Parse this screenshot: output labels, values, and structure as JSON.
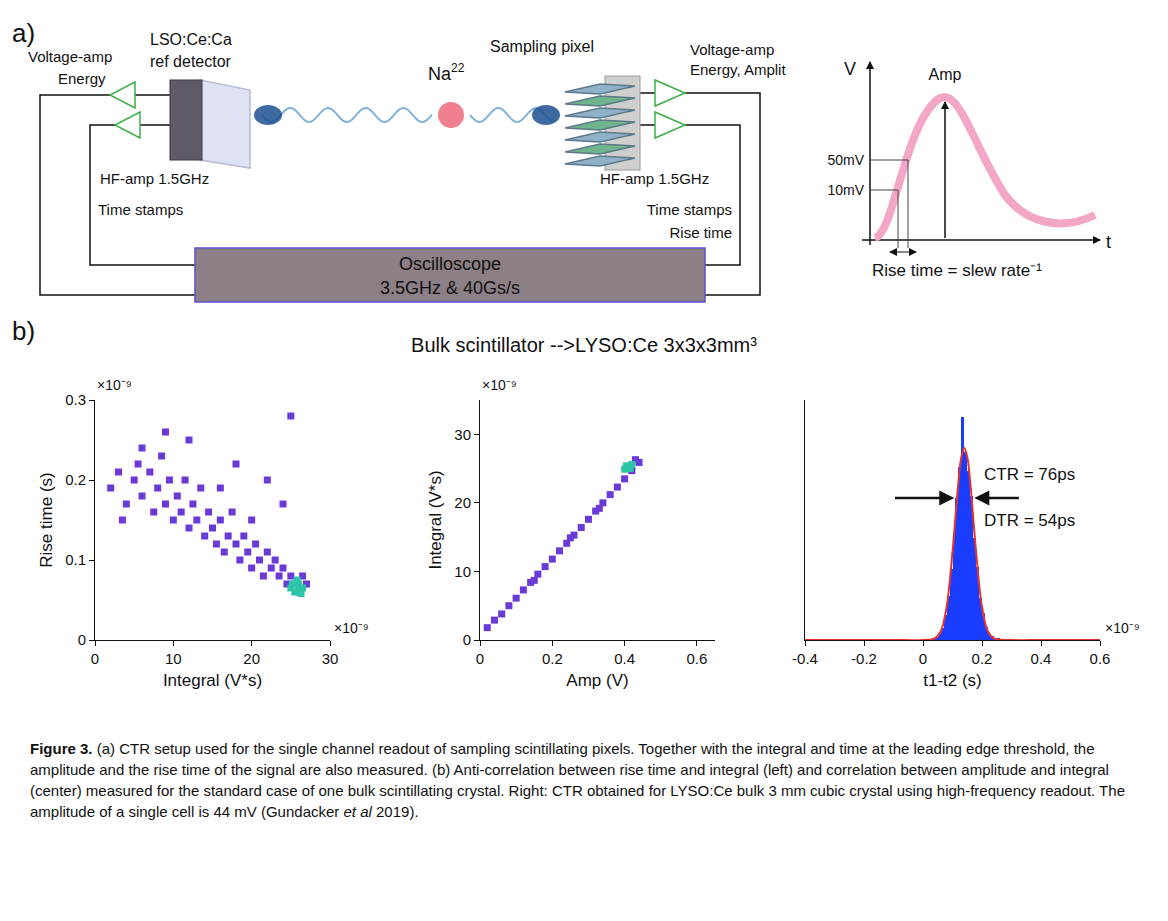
{
  "panel_a": {
    "label": "a)",
    "ref_detector": [
      "LSO:Ce:Ca",
      "ref detector"
    ],
    "sampling_pixel": "Sampling pixel",
    "source": {
      "text": "Na",
      "sup": "22"
    },
    "left_voltage_amp": [
      "Voltage-amp",
      "Energy"
    ],
    "left_hf_amp": "HF-amp 1.5GHz",
    "left_output": "Time stamps",
    "right_voltage_amp": [
      "Voltage-amp",
      "Energy, Amplit"
    ],
    "right_hf_amp": "HF-amp 1.5GHz",
    "right_output": [
      "Time stamps",
      "Rise time"
    ],
    "oscilloscope": [
      "Oscilloscope",
      "3.5GHz & 40Gs/s"
    ],
    "inset": {
      "y_label": "V",
      "x_label": "t",
      "amp": "Amp",
      "thresholds": [
        "50mV",
        "10mV"
      ],
      "rise_time": "Rise time = slew rate⁻¹"
    }
  },
  "panel_b": {
    "label": "b)",
    "title": "Bulk scintillator -->LYSO:Ce 3x3x3mm³"
  },
  "chart_data": [
    {
      "type": "scatter",
      "x_label": "Integral (V*s)",
      "y_label": "Rise time (s)",
      "xlim": [
        0,
        30
      ],
      "xticks": [
        0,
        10,
        20,
        30
      ],
      "ylim": [
        0,
        0.3
      ],
      "yticks": [
        0,
        0.1,
        0.2,
        0.3
      ],
      "grid": false,
      "annotations": [
        {
          "text": "×10⁻⁹",
          "axis": "y"
        },
        {
          "text": "×10⁻⁹",
          "axis": "x"
        }
      ],
      "series": [
        {
          "color": "#6a3ad8",
          "marker": "square",
          "x": [
            2,
            3,
            4,
            5,
            5.5,
            6,
            7,
            7.5,
            8,
            8.5,
            9,
            9.5,
            10,
            10.5,
            11,
            11.5,
            12,
            12.5,
            13,
            13.5,
            14,
            14.5,
            15,
            15.5,
            16,
            16.5,
            17,
            17.5,
            18,
            18.5,
            19,
            19.5,
            20,
            20.5,
            21,
            21.5,
            22,
            22.5,
            23,
            23.5,
            24,
            24.5,
            25,
            25.5,
            26,
            26.5,
            27,
            12,
            18,
            22,
            24,
            25,
            9,
            16,
            20,
            6,
            3.5
          ],
          "values": [
            0.19,
            0.21,
            0.17,
            0.2,
            0.22,
            0.18,
            0.21,
            0.16,
            0.19,
            0.23,
            0.17,
            0.2,
            0.15,
            0.18,
            0.16,
            0.2,
            0.14,
            0.17,
            0.15,
            0.19,
            0.13,
            0.16,
            0.14,
            0.12,
            0.15,
            0.11,
            0.13,
            0.16,
            0.12,
            0.1,
            0.13,
            0.11,
            0.09,
            0.12,
            0.1,
            0.08,
            0.11,
            0.09,
            0.1,
            0.08,
            0.09,
            0.07,
            0.08,
            0.07,
            0.06,
            0.08,
            0.07,
            0.25,
            0.22,
            0.2,
            0.17,
            0.28,
            0.26,
            0.19,
            0.15,
            0.24,
            0.15
          ]
        },
        {
          "color": "#2ec4a8",
          "marker": "square",
          "x": [
            25,
            25.5,
            26,
            26.3,
            25.8,
            26.5,
            25.2,
            26.1
          ],
          "values": [
            0.065,
            0.06,
            0.07,
            0.058,
            0.075,
            0.065,
            0.07,
            0.062
          ]
        }
      ]
    },
    {
      "type": "scatter",
      "x_label": "Amp (V)",
      "y_label": "Integral (V*s)",
      "xlim": [
        0,
        0.65
      ],
      "xticks": [
        0,
        0.2,
        0.4,
        0.6
      ],
      "ylim": [
        0,
        35
      ],
      "yticks": [
        0,
        10,
        20,
        30
      ],
      "grid": false,
      "annotations": [
        {
          "text": "×10⁻⁹",
          "axis": "y"
        }
      ],
      "series": [
        {
          "color": "#6a3ad8",
          "marker": "square",
          "x": [
            0.02,
            0.04,
            0.06,
            0.08,
            0.1,
            0.12,
            0.14,
            0.16,
            0.18,
            0.2,
            0.22,
            0.24,
            0.26,
            0.28,
            0.3,
            0.32,
            0.34,
            0.36,
            0.38,
            0.4,
            0.42,
            0.44,
            0.15,
            0.25,
            0.33,
            0.43
          ],
          "values": [
            1.8,
            2.9,
            3.8,
            5.0,
            6.1,
            7.3,
            8.4,
            9.6,
            10.7,
            11.8,
            13.0,
            14.1,
            15.3,
            16.4,
            17.6,
            18.8,
            20.0,
            21.2,
            22.3,
            23.5,
            24.7,
            25.9,
            8.7,
            14.9,
            19.2,
            26.3
          ]
        },
        {
          "color": "#2ec4a8",
          "marker": "square",
          "x": [
            0.4,
            0.41,
            0.415,
            0.405,
            0.42
          ],
          "values": [
            24.9,
            25.2,
            25.0,
            25.4,
            25.6
          ]
        }
      ]
    },
    {
      "type": "histogram",
      "x_label": "t1-t2 (s)",
      "xlim": [
        -0.4,
        0.6
      ],
      "xticks": [
        -0.4,
        -0.2,
        0,
        0.2,
        0.4,
        0.6
      ],
      "ylim": [
        0,
        125
      ],
      "tick_labels": "x",
      "grid": false,
      "color": "#1a3cff",
      "bins": [
        0.02,
        0.03,
        0.04,
        0.05,
        0.06,
        0.07,
        0.08,
        0.09,
        0.1,
        0.11,
        0.12,
        0.13,
        0.14,
        0.15,
        0.16,
        0.17,
        0.18,
        0.19,
        0.2,
        0.21,
        0.22,
        0.23,
        0.24,
        0.25,
        0.26,
        0.27,
        0.28
      ],
      "counts": [
        0,
        1,
        1,
        3,
        6,
        13,
        23,
        37,
        55,
        74,
        90,
        116,
        98,
        88,
        75,
        53,
        38,
        22,
        14,
        7,
        3,
        2,
        1,
        1,
        0,
        0
      ],
      "fit": {
        "color": "#e8332a",
        "line_style": "solid",
        "x": [
          -0.4,
          -0.3,
          -0.2,
          -0.1,
          0,
          0.04,
          0.06,
          0.08,
          0.1,
          0.12,
          0.13,
          0.14,
          0.15,
          0.16,
          0.18,
          0.2,
          0.22,
          0.24,
          0.3,
          0.4,
          0.5,
          0.6
        ],
        "values": [
          0,
          0,
          0,
          0,
          0,
          0.8,
          4.4,
          17.2,
          45.8,
          82.3,
          95.3,
          100,
          95.3,
          82.3,
          45.8,
          17.2,
          4.4,
          0.8,
          0,
          0,
          0,
          0
        ]
      },
      "annotations": [
        {
          "text": "×10⁻⁹",
          "axis": "x"
        },
        {
          "text": "CTR = 76ps"
        },
        {
          "text": "DTR = 54ps"
        }
      ]
    }
  ],
  "caption": {
    "label": "Figure 3.",
    "text": "(a) CTR setup used for the single channel readout of sampling scintillating pixels. Together with the integral and time at the leading edge threshold, the amplitude and the rise time of the signal are also measured. (b) Anti-correlation between rise time and integral (left) and correlation between amplitude and integral (center) measured for the standard case of one bulk scintillating crystal. Right: CTR obtained for LYSO:Ce bulk 3 mm cubic crystal using high-frequency readout. The amplitude of a single cell is 44 mV (Gundacker et al 2019).",
    "italic": "et al"
  }
}
